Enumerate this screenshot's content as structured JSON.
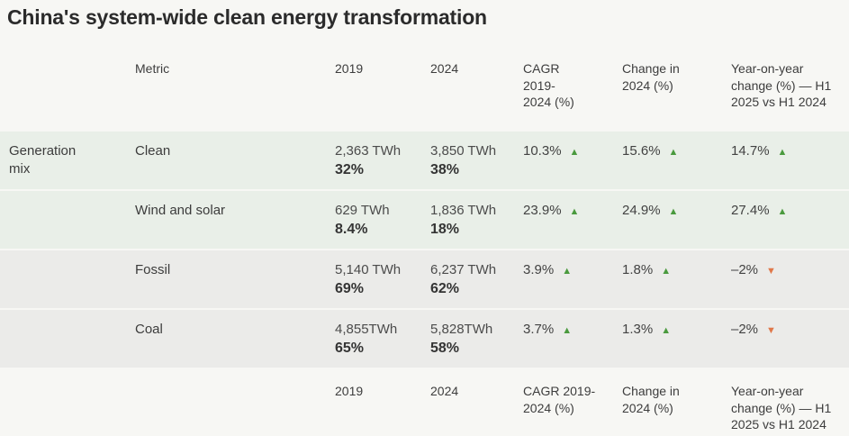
{
  "title": "China's system-wide clean energy transformation",
  "header": {
    "metric": "Metric",
    "y2019": "2019",
    "y2024": "2024",
    "cagr": "CAGR\n2019-\n2024 (%)",
    "change": "Change in\n2024 (%)",
    "yoy": "Year-on-year\nchange (%) — H1\n2025 vs H1 2024"
  },
  "footer": {
    "y2019": "2019",
    "y2024": "2024",
    "cagr": "CAGR 2019-\n2024 (%)",
    "change": "Change in\n2024 (%)",
    "yoy": "Year-on-year\nchange (%) — H1\n2025 vs H1 2024"
  },
  "group_label": "Generation mix",
  "rows": [
    {
      "metric": "Clean",
      "value_2019": "2,363 TWh",
      "share_2019": "32%",
      "value_2024": "3,850 TWh",
      "share_2024": "38%",
      "cagr": "10.3%",
      "cagr_trend": "up",
      "change_2024": "15.6%",
      "change_trend": "up",
      "yoy": "14.7%",
      "yoy_trend": "up"
    },
    {
      "metric": "Wind and solar",
      "value_2019": "629 TWh",
      "share_2019": "8.4%",
      "value_2024": "1,836 TWh",
      "share_2024": "18%",
      "cagr": "23.9%",
      "cagr_trend": "up",
      "change_2024": "24.9%",
      "change_trend": "up",
      "yoy": "27.4%",
      "yoy_trend": "up"
    },
    {
      "metric": "Fossil",
      "value_2019": "5,140 TWh",
      "share_2019": "69%",
      "value_2024": "6,237 TWh",
      "share_2024": "62%",
      "cagr": "3.9%",
      "cagr_trend": "up",
      "change_2024": "1.8%",
      "change_trend": "up",
      "yoy": "–2%",
      "yoy_trend": "down"
    },
    {
      "metric": "Coal",
      "value_2019": "4,855TWh",
      "share_2019": "65%",
      "value_2024": "5,828TWh",
      "share_2024": "58%",
      "cagr": "3.7%",
      "cagr_trend": "up",
      "change_2024": "1.3%",
      "change_trend": "up",
      "yoy": "–2%",
      "yoy_trend": "down"
    }
  ],
  "icons": {
    "up_triangle": "▲",
    "down_triangle": "▼"
  },
  "colors": {
    "positive": "#4a9a3e",
    "negative": "#e0784a",
    "green_row_bg": "#e9efe8",
    "gray_row_bg": "#ebebe9",
    "page_bg": "#f7f7f4"
  },
  "chart_data": {
    "type": "table",
    "title": "China's system-wide clean energy transformation",
    "columns": [
      "Metric",
      "2019",
      "2024",
      "CAGR 2019-2024 (%)",
      "Change in 2024 (%)",
      "Year-on-year change (%) — H1 2025 vs H1 2024"
    ],
    "row_group": "Generation mix",
    "rows": [
      [
        "Clean",
        "2,363 TWh / 32%",
        "3,850 TWh / 38%",
        "10.3% up",
        "15.6% up",
        "14.7% up"
      ],
      [
        "Wind and solar",
        "629 TWh / 8.4%",
        "1,836 TWh / 18%",
        "23.9% up",
        "24.9% up",
        "27.4% up"
      ],
      [
        "Fossil",
        "5,140 TWh / 69%",
        "6,237 TWh / 62%",
        "3.9% up",
        "1.8% up",
        "-2% down"
      ],
      [
        "Coal",
        "4,855 TWh / 65%",
        "5,828 TWh / 58%",
        "3.7% up",
        "1.3% up",
        "-2% down"
      ]
    ]
  }
}
